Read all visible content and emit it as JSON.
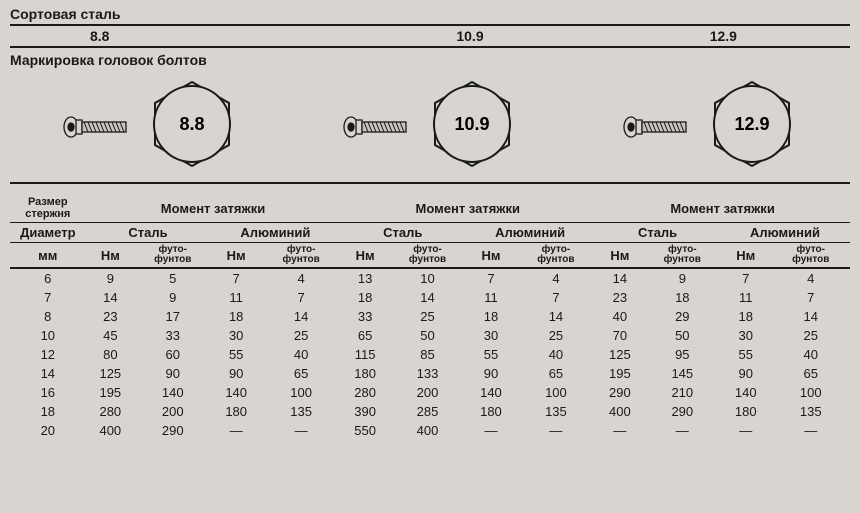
{
  "section1_title": "Сортовая сталь",
  "grades": [
    "8.8",
    "10.9",
    "12.9"
  ],
  "section2_title": "Маркировка головок болтов",
  "head_labels": [
    "8.8",
    "10.9",
    "12.9"
  ],
  "bolt_svg": {
    "stroke": "#1a1a1a",
    "fill": "#d8d4d0"
  },
  "table": {
    "size_header1": "Размер",
    "size_header2": "стержня",
    "diameter_label": "Диаметр",
    "mm_label": "мм",
    "moment_label": "Момент затяжки",
    "steel_label": "Сталь",
    "alum_label": "Алюминий",
    "nm_label": "Нм",
    "futo1": "футо-",
    "futo2": "фунтов",
    "diameters": [
      "6",
      "7",
      "8",
      "10",
      "12",
      "14",
      "16",
      "18",
      "20"
    ],
    "data": [
      [
        "9",
        "5",
        "7",
        "4",
        "13",
        "10",
        "7",
        "4",
        "14",
        "9",
        "7",
        "4"
      ],
      [
        "14",
        "9",
        "11",
        "7",
        "18",
        "14",
        "11",
        "7",
        "23",
        "18",
        "11",
        "7"
      ],
      [
        "23",
        "17",
        "18",
        "14",
        "33",
        "25",
        "18",
        "14",
        "40",
        "29",
        "18",
        "14"
      ],
      [
        "45",
        "33",
        "30",
        "25",
        "65",
        "50",
        "30",
        "25",
        "70",
        "50",
        "30",
        "25"
      ],
      [
        "80",
        "60",
        "55",
        "40",
        "115",
        "85",
        "55",
        "40",
        "125",
        "95",
        "55",
        "40"
      ],
      [
        "125",
        "90",
        "90",
        "65",
        "180",
        "133",
        "90",
        "65",
        "195",
        "145",
        "90",
        "65"
      ],
      [
        "195",
        "140",
        "140",
        "100",
        "280",
        "200",
        "140",
        "100",
        "290",
        "210",
        "140",
        "100"
      ],
      [
        "280",
        "200",
        "180",
        "135",
        "390",
        "285",
        "180",
        "135",
        "400",
        "290",
        "180",
        "135"
      ],
      [
        "400",
        "290",
        "—",
        "—",
        "550",
        "400",
        "—",
        "—",
        "—",
        "—",
        "—",
        "—"
      ]
    ]
  },
  "style": {
    "background": "#d8d4d0",
    "text_color": "#1a1a1a",
    "font_family": "Arial",
    "header_fontsize": 14,
    "body_fontsize": 13,
    "head_label_fontsize": 18
  }
}
